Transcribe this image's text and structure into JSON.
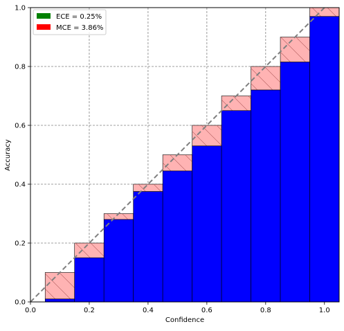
{
  "chart_data": {
    "type": "bar",
    "xlabel": "Confidence",
    "ylabel": "Accuracy",
    "xlim": [
      0,
      1.05
    ],
    "ylim": [
      0,
      1.0
    ],
    "xticks": [
      "0.0",
      "0.2",
      "0.4",
      "0.6",
      "0.8",
      "1.0"
    ],
    "yticks": [
      "0.0",
      "0.2",
      "0.4",
      "0.6",
      "0.8",
      "1.0"
    ],
    "grid": true,
    "legend_position": "top-left",
    "bin_width": 0.1,
    "bin_centers": [
      0.1,
      0.2,
      0.3,
      0.4,
      0.5,
      0.6,
      0.7,
      0.8,
      0.9,
      1.0
    ],
    "series": [
      {
        "name": "",
        "color": "#0000ff",
        "values": [
          0.01,
          0.15,
          0.28,
          0.375,
          0.445,
          0.53,
          0.65,
          0.72,
          0.815,
          0.97
        ]
      },
      {
        "name": "",
        "color": "#ffb3b3",
        "hatch": true,
        "bottoms": [
          0.01,
          0.15,
          0.28,
          0.375,
          0.445,
          0.53,
          0.65,
          0.72,
          0.815,
          0.97
        ],
        "tops": [
          0.1,
          0.2,
          0.3,
          0.4,
          0.5,
          0.6,
          0.7,
          0.8,
          0.9,
          1.0
        ]
      }
    ],
    "diagonal": {
      "from": [
        0,
        0
      ],
      "to": [
        1,
        1
      ],
      "color": "#808080"
    },
    "legend": [
      {
        "label": "ECE = 0.25%",
        "color": "#008000"
      },
      {
        "label": "MCE = 3.86%",
        "color": "#ff0000"
      }
    ]
  }
}
